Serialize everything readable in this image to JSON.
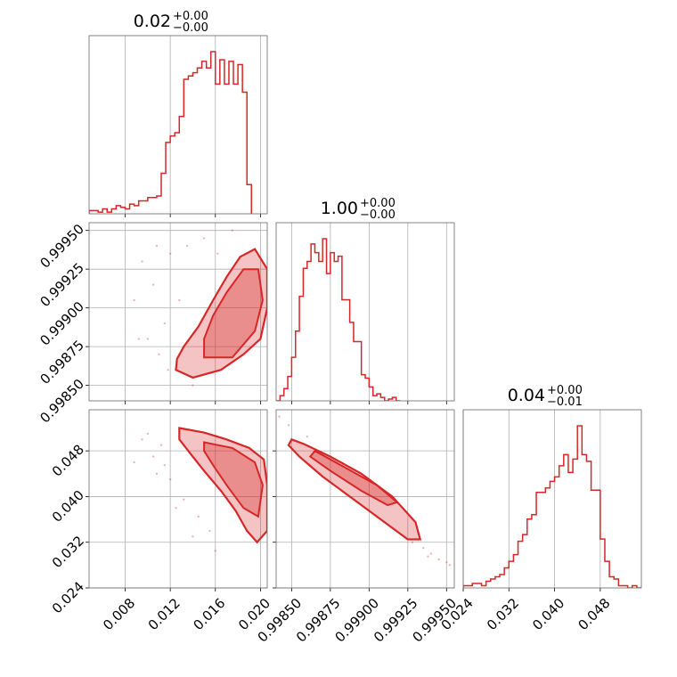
{
  "chart_data": {
    "type": "corner",
    "color": "#d62728",
    "parameters": [
      {
        "title_value": "0.02",
        "title_plus": "+0.00",
        "title_minus": "−0.00",
        "range": [
          0.0048,
          0.0206
        ],
        "ticks": [
          0.008,
          0.012,
          0.016,
          0.02
        ],
        "tick_labels": [
          "0.008",
          "0.012",
          "0.016",
          "0.020"
        ]
      },
      {
        "title_value": "1.00",
        "title_plus": "+0.00",
        "title_minus": "−0.00",
        "range": [
          0.9984,
          0.99955
        ],
        "ticks": [
          0.9985,
          0.99875,
          0.999,
          0.99925,
          0.9995
        ],
        "tick_labels": [
          "0.99850",
          "0.99875",
          "0.99900",
          "0.99925",
          "0.99950"
        ]
      },
      {
        "title_value": "0.04",
        "title_plus": "+0.00",
        "title_minus": "−0.01",
        "range": [
          0.024,
          0.0552
        ],
        "ticks": [
          0.024,
          0.032,
          0.04,
          0.048
        ],
        "tick_labels": [
          "0.024",
          "0.032",
          "0.040",
          "0.048"
        ]
      }
    ],
    "histograms": [
      {
        "param": 0,
        "bin_edges_start": 0.0048,
        "bin_width": 0.0004,
        "counts": [
          2,
          2,
          1,
          3,
          1,
          3,
          5,
          4,
          3,
          6,
          5,
          8,
          8,
          10,
          10,
          11,
          25,
          44,
          48,
          50,
          60,
          83,
          85,
          87,
          90,
          94,
          90,
          100,
          80,
          95,
          80,
          94,
          80,
          92,
          75,
          18
        ]
      },
      {
        "param": 1,
        "bin_edges_start": 0.9984,
        "bin_width": 2.5e-05,
        "counts": [
          0,
          3,
          7,
          14,
          25,
          40,
          60,
          76,
          80,
          90,
          85,
          80,
          93,
          73,
          85,
          80,
          83,
          58,
          58,
          45,
          34,
          34,
          15,
          13,
          8,
          3,
          4,
          2,
          0,
          1,
          2,
          0
        ]
      },
      {
        "param": 2,
        "bin_edges_start": 0.024,
        "bin_width": 0.0008,
        "counts": [
          1,
          1,
          2,
          2,
          1,
          3,
          4,
          5,
          6,
          9,
          12,
          15,
          21,
          24,
          31,
          33,
          43,
          43,
          45,
          48,
          50,
          55,
          60,
          52,
          58,
          73,
          60,
          57,
          44,
          44,
          22,
          12,
          5,
          4,
          1,
          1,
          0,
          1,
          0
        ]
      }
    ],
    "pairs": [
      {
        "x_param": 0,
        "y_param": 1,
        "contours": [
          [
            [
              0.0125,
              0.9986
            ],
            [
              0.014,
              0.99855
            ],
            [
              0.0165,
              0.9986
            ],
            [
              0.0185,
              0.9987
            ],
            [
              0.02,
              0.9988
            ],
            [
              0.0206,
              0.999
            ],
            [
              0.0206,
              0.99925
            ],
            [
              0.0195,
              0.99938
            ],
            [
              0.0182,
              0.99933
            ],
            [
              0.017,
              0.9992
            ],
            [
              0.0158,
              0.99905
            ],
            [
              0.0145,
              0.99888
            ],
            [
              0.0132,
              0.99875
            ],
            [
              0.0126,
              0.99867
            ]
          ],
          [
            [
              0.015,
              0.99868
            ],
            [
              0.0175,
              0.99868
            ],
            [
              0.0195,
              0.99885
            ],
            [
              0.0202,
              0.99905
            ],
            [
              0.0198,
              0.99925
            ],
            [
              0.0185,
              0.99925
            ],
            [
              0.017,
              0.9991
            ],
            [
              0.0158,
              0.99895
            ],
            [
              0.015,
              0.9988
            ]
          ]
        ],
        "points": [
          [
            0.0095,
            0.9993
          ],
          [
            0.0105,
            0.99915
          ],
          [
            0.0115,
            0.9989
          ],
          [
            0.012,
            0.99935
          ],
          [
            0.0088,
            0.99905
          ],
          [
            0.011,
            0.9987
          ],
          [
            0.0135,
            0.9994
          ],
          [
            0.0128,
            0.99905
          ],
          [
            0.01,
            0.9988
          ],
          [
            0.014,
            0.9985
          ],
          [
            0.015,
            0.99945
          ],
          [
            0.0162,
            0.99935
          ],
          [
            0.0175,
            0.9995
          ],
          [
            0.0118,
            0.9986
          ],
          [
            0.0092,
            0.9988
          ],
          [
            0.0108,
            0.9994
          ]
        ]
      },
      {
        "x_param": 0,
        "y_param": 2,
        "contours": [
          [
            [
              0.0128,
              0.052
            ],
            [
              0.015,
              0.0512
            ],
            [
              0.017,
              0.05
            ],
            [
              0.019,
              0.0485
            ],
            [
              0.0203,
              0.0465
            ],
            [
              0.0206,
              0.042
            ],
            [
              0.0206,
              0.034
            ],
            [
              0.0197,
              0.032
            ],
            [
              0.0188,
              0.034
            ],
            [
              0.0178,
              0.0375
            ],
            [
              0.0165,
              0.041
            ],
            [
              0.015,
              0.0445
            ],
            [
              0.0138,
              0.0475
            ],
            [
              0.0128,
              0.05
            ]
          ],
          [
            [
              0.015,
              0.0495
            ],
            [
              0.0175,
              0.0485
            ],
            [
              0.0195,
              0.046
            ],
            [
              0.0202,
              0.042
            ],
            [
              0.0198,
              0.0365
            ],
            [
              0.0185,
              0.038
            ],
            [
              0.017,
              0.042
            ],
            [
              0.0158,
              0.0455
            ],
            [
              0.015,
              0.048
            ]
          ]
        ],
        "points": [
          [
            0.0095,
            0.05
          ],
          [
            0.0105,
            0.047
          ],
          [
            0.0115,
            0.0455
          ],
          [
            0.0088,
            0.046
          ],
          [
            0.012,
            0.043
          ],
          [
            0.0112,
            0.049
          ],
          [
            0.0132,
            0.0395
          ],
          [
            0.0145,
            0.0365
          ],
          [
            0.01,
            0.051
          ],
          [
            0.0125,
            0.038
          ],
          [
            0.0155,
            0.034
          ],
          [
            0.014,
            0.033
          ],
          [
            0.0108,
            0.044
          ],
          [
            0.016,
            0.0305
          ]
        ]
      },
      {
        "x_param": 1,
        "y_param": 2,
        "contours": [
          [
            [
              0.9985,
              0.05
            ],
            [
              0.99858,
              0.0492
            ],
            [
              0.99875,
              0.047
            ],
            [
              0.99895,
              0.044
            ],
            [
              0.99915,
              0.04
            ],
            [
              0.9993,
              0.0355
            ],
            [
              0.99933,
              0.0325
            ],
            [
              0.99925,
              0.0325
            ],
            [
              0.9991,
              0.0355
            ],
            [
              0.9989,
              0.0395
            ],
            [
              0.9987,
              0.0435
            ],
            [
              0.99855,
              0.047
            ],
            [
              0.99848,
              0.049
            ]
          ],
          [
            [
              0.99865,
              0.048
            ],
            [
              0.99885,
              0.045
            ],
            [
              0.99905,
              0.042
            ],
            [
              0.99918,
              0.039
            ],
            [
              0.99912,
              0.0385
            ],
            [
              0.99895,
              0.041
            ],
            [
              0.99875,
              0.0445
            ],
            [
              0.99862,
              0.047
            ]
          ]
        ],
        "points": [
          [
            0.99842,
            0.054
          ],
          [
            0.99848,
            0.0525
          ],
          [
            0.9994,
            0.03
          ],
          [
            0.99945,
            0.029
          ],
          [
            0.99935,
            0.031
          ],
          [
            0.9995,
            0.0285
          ],
          [
            0.99952,
            0.028
          ],
          [
            0.99938,
            0.0295
          ],
          [
            0.9986,
            0.0505
          ],
          [
            0.99928,
            0.032
          ]
        ]
      }
    ]
  }
}
